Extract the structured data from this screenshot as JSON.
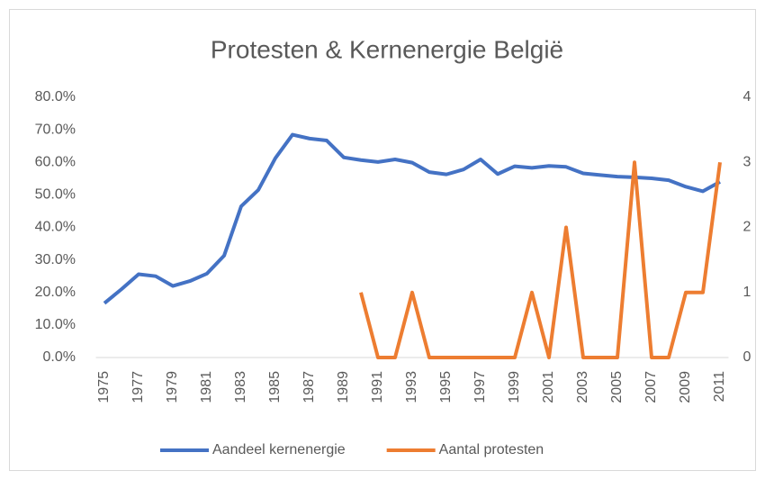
{
  "chart_data": {
    "type": "line",
    "title": "Protesten & Kernenergie België",
    "categories": [
      "1975",
      null,
      "1977",
      null,
      "1979",
      null,
      "1981",
      null,
      "1983",
      null,
      "1985",
      null,
      "1987",
      null,
      "1989",
      null,
      "1991",
      null,
      "1993",
      null,
      "1995",
      null,
      "1997",
      null,
      "1999",
      null,
      "2001",
      null,
      "2003",
      null,
      "2005",
      null,
      "2007",
      null,
      "2009",
      null,
      "2011"
    ],
    "series": [
      {
        "name": "Aandeel kernenergie",
        "color": "#4472c4",
        "values": [
          16.7,
          21,
          25.6,
          25,
          22,
          23.5,
          25.8,
          31.3,
          46.5,
          51.5,
          61.3,
          68.5,
          67.3,
          66.7,
          61.5,
          60.7,
          60.1,
          60.9,
          59.9,
          57,
          56.3,
          57.8,
          60.9,
          56.4,
          58.8,
          58.3,
          58.9,
          58.6,
          56.6,
          56.1,
          55.6,
          55.4,
          55.1,
          54.5,
          52.5,
          51.1,
          54
        ]
      },
      {
        "name": "Aantal protesten",
        "color": "#ed7d31",
        "axis": "y2",
        "values": [
          null,
          null,
          null,
          null,
          null,
          null,
          null,
          null,
          null,
          null,
          null,
          null,
          null,
          null,
          null,
          1,
          0,
          0,
          1,
          0,
          0,
          0,
          0,
          0,
          0,
          1,
          0,
          2,
          0,
          0,
          0,
          3,
          0,
          0,
          1,
          1,
          3
        ]
      }
    ],
    "ylim": [
      0,
      80
    ],
    "yticks": [
      {
        "value": 0,
        "label": "0.0%"
      },
      {
        "value": 10,
        "label": "10.0%"
      },
      {
        "value": 20,
        "label": "20.0%"
      },
      {
        "value": 30,
        "label": "30.0%"
      },
      {
        "value": 40,
        "label": "40.0%"
      },
      {
        "value": 50,
        "label": "50.0%"
      },
      {
        "value": 60,
        "label": "60.0%"
      },
      {
        "value": 70,
        "label": "70.0%"
      },
      {
        "value": 80,
        "label": "80.0%"
      }
    ],
    "y2lim": [
      0,
      4
    ],
    "y2ticks": [
      0,
      1,
      2,
      3,
      4
    ],
    "grid": false,
    "legend": "bottom"
  }
}
